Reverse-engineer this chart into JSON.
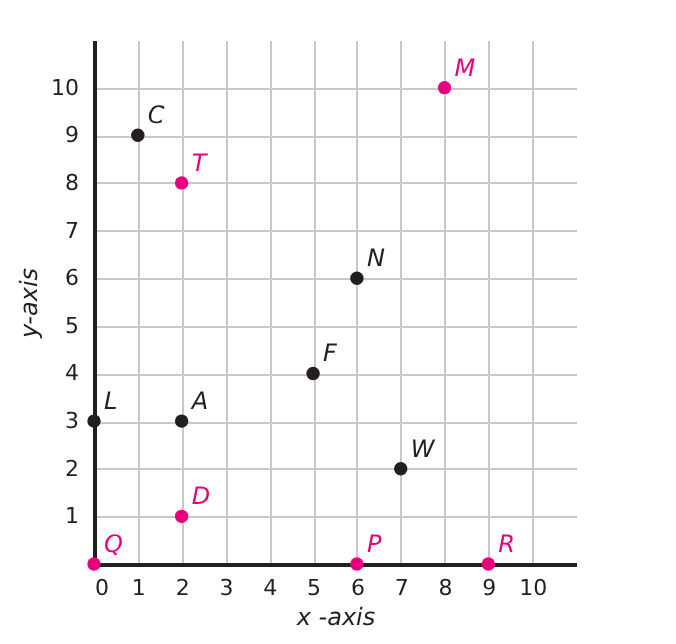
{
  "chart_data": {
    "type": "scatter",
    "xlabel": "x -axis",
    "ylabel": "y-axis",
    "xlim": [
      0,
      11
    ],
    "ylim": [
      0,
      11
    ],
    "xticks": [
      0,
      1,
      2,
      3,
      4,
      5,
      6,
      7,
      8,
      9,
      10
    ],
    "yticks": [
      1,
      2,
      3,
      4,
      5,
      6,
      7,
      8,
      9,
      10
    ],
    "grid": true,
    "marker": "circle",
    "series": [
      {
        "color": "#231f20",
        "x": [
          1,
          0,
          2,
          5,
          6,
          7
        ],
        "values": [
          9,
          3,
          3,
          4,
          6,
          2
        ]
      },
      {
        "color": "#e6007e",
        "x": [
          2,
          8,
          2,
          0,
          6,
          9
        ],
        "values": [
          8,
          10,
          1,
          0,
          0,
          0
        ]
      }
    ],
    "annotations": [
      {
        "text": "C",
        "x": 1,
        "y": 9
      },
      {
        "text": "L",
        "x": 0,
        "y": 3
      },
      {
        "text": "A",
        "x": 2,
        "y": 3
      },
      {
        "text": "F",
        "x": 5,
        "y": 4
      },
      {
        "text": "N",
        "x": 6,
        "y": 6
      },
      {
        "text": "W",
        "x": 7,
        "y": 2
      },
      {
        "text": "T",
        "x": 2,
        "y": 8
      },
      {
        "text": "M",
        "x": 8,
        "y": 10
      },
      {
        "text": "D",
        "x": 2,
        "y": 1
      },
      {
        "text": "Q",
        "x": 0,
        "y": 0
      },
      {
        "text": "P",
        "x": 6,
        "y": 0
      },
      {
        "text": "R",
        "x": 9,
        "y": 0
      }
    ]
  }
}
